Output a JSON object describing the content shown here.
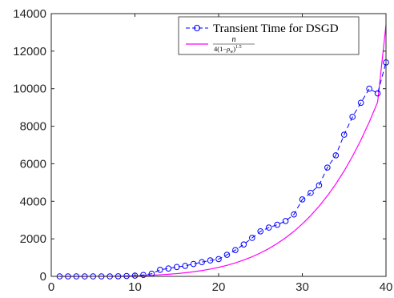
{
  "chart_data": {
    "type": "line",
    "title": "",
    "xlabel": "",
    "ylabel": "",
    "xlim": [
      0,
      40
    ],
    "ylim": [
      0,
      14000
    ],
    "xticks": [
      0,
      10,
      20,
      30,
      40
    ],
    "yticks": [
      0,
      2000,
      4000,
      6000,
      8000,
      10000,
      12000,
      14000
    ],
    "xtick_labels": [
      "0",
      "10",
      "20",
      "30",
      "40"
    ],
    "ytick_labels": [
      "0",
      "2000",
      "4000",
      "6000",
      "8000",
      "10000",
      "12000",
      "14000"
    ],
    "grid": false,
    "legend_position": "top-right",
    "series": [
      {
        "name": "Transient Time for DSGD",
        "color": "#0000ff",
        "style": "dashed with circle markers",
        "x": [
          1,
          2,
          3,
          4,
          5,
          6,
          7,
          8,
          9,
          10,
          11,
          12,
          13,
          14,
          15,
          16,
          17,
          18,
          19,
          20,
          21,
          22,
          23,
          24,
          25,
          26,
          27,
          28,
          29,
          30,
          31,
          32,
          33,
          34,
          35,
          36,
          37,
          38,
          39,
          40
        ],
        "values": [
          0,
          0,
          0,
          0,
          0,
          0,
          0,
          5,
          20,
          40,
          75,
          140,
          350,
          420,
          500,
          560,
          660,
          760,
          850,
          920,
          1150,
          1400,
          1700,
          2050,
          2400,
          2600,
          2750,
          2950,
          3300,
          4100,
          4450,
          4850,
          5800,
          6450,
          7550,
          8500,
          9250,
          10000,
          9750,
          11400
        ]
      },
      {
        "name": "n / (4(1-ρ_w)^1.5)",
        "color": "#ff00ff",
        "style": "solid",
        "x": [
          1,
          2,
          3,
          4,
          5,
          6,
          7,
          8,
          9,
          10,
          11,
          12,
          13,
          14,
          15,
          16,
          17,
          18,
          19,
          20,
          21,
          22,
          23,
          24,
          25,
          26,
          27,
          28,
          29,
          30,
          31,
          32,
          33,
          34,
          35,
          36,
          37,
          38,
          39,
          40
        ],
        "values": [
          0,
          0,
          0,
          1,
          2,
          4,
          7,
          12,
          19,
          29,
          42,
          59,
          82,
          111,
          147,
          191,
          245,
          310,
          388,
          480,
          590,
          719,
          870,
          1045,
          1248,
          1481,
          1748,
          2053,
          2400,
          2792,
          3235,
          3734,
          4293,
          4919,
          5618,
          6397,
          7262,
          8222,
          9284,
          13400
        ]
      }
    ]
  },
  "legend": {
    "entry1": "Transient Time for DSGD",
    "entry2_numerator": "n",
    "entry2_denominator_pre": "4(1−",
    "entry2_denominator_rho": "ρ",
    "entry2_denominator_sub": "w",
    "entry2_denominator_post": ")",
    "entry2_denominator_exp": "1.5"
  }
}
